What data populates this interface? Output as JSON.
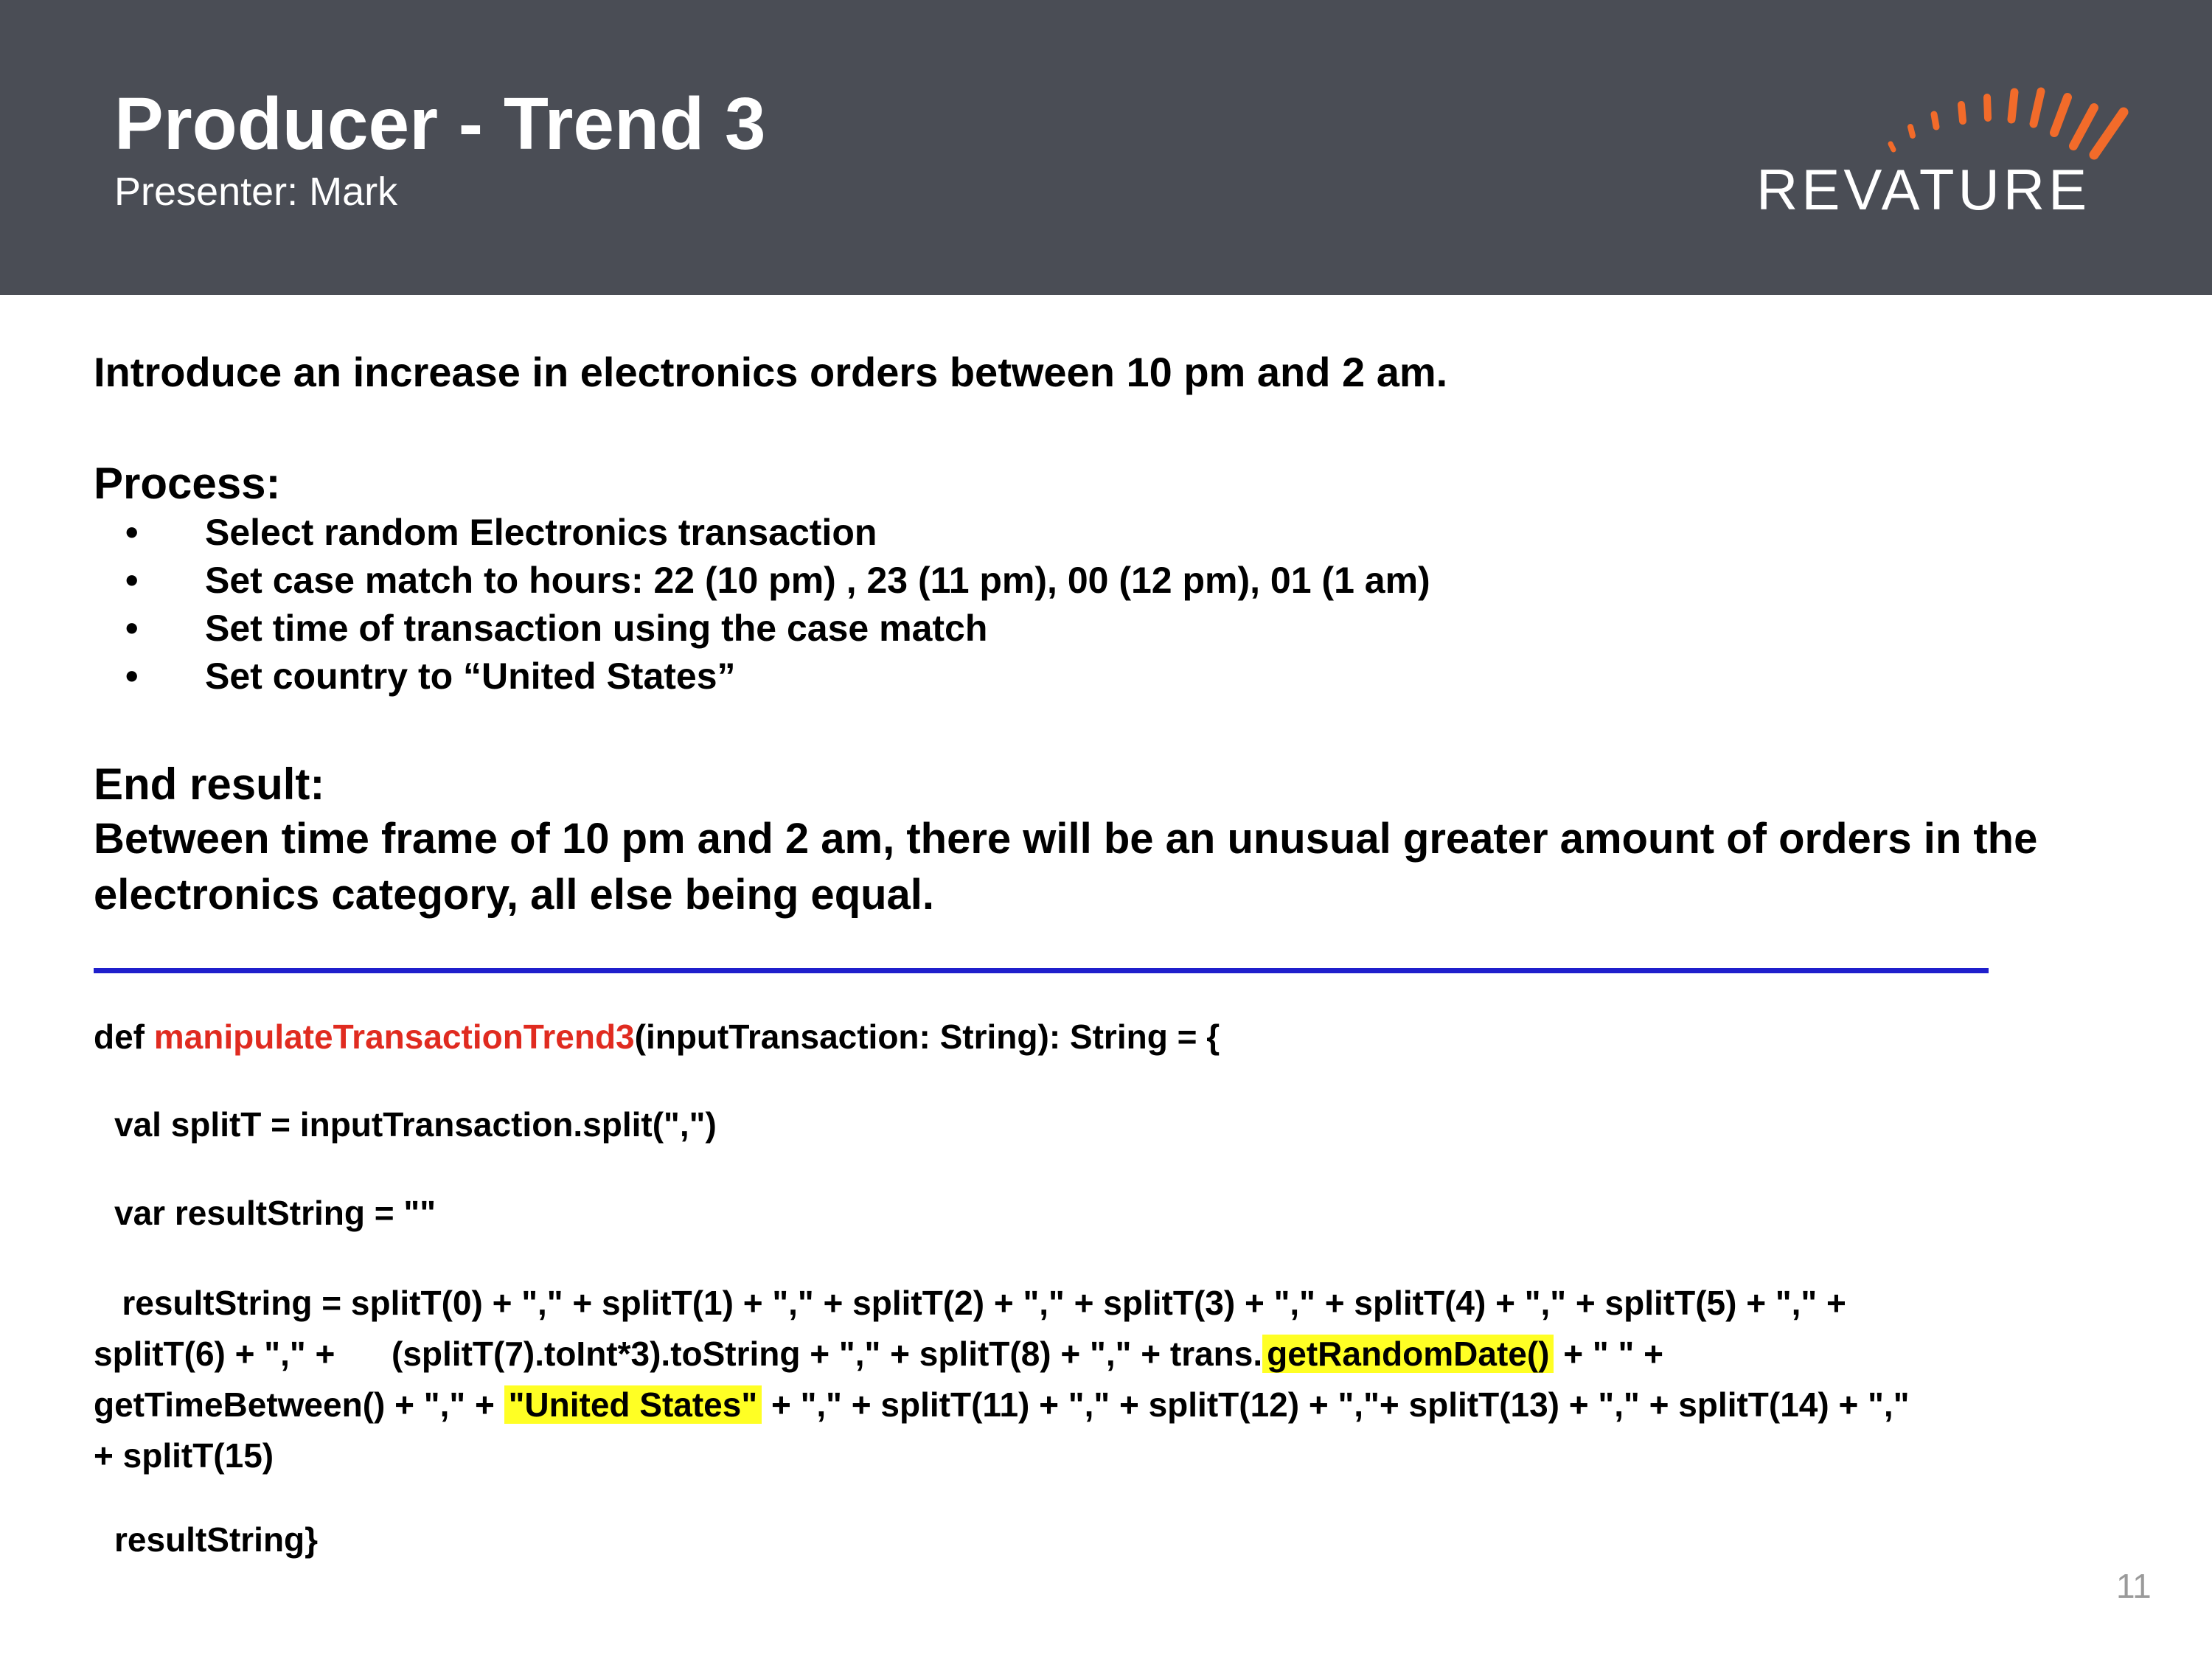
{
  "header": {
    "title": "Producer - Trend 3",
    "subtitle": "Presenter: Mark",
    "logo_text": "REVATURE",
    "bg_color": "#4a4d55",
    "accent_color": "#f26b2a"
  },
  "body": {
    "intro": "Introduce an increase in electronics orders between 10 pm and 2 am.",
    "process_heading": "Process:",
    "bullet_symbol": "•",
    "process_items": [
      "Select random Electronics transaction",
      "Set case match to hours:  22 (10 pm) , 23 (11 pm), 00 (12 pm), 01 (1 am)",
      "Set time of transaction using the case match",
      "Set country to “United States”"
    ],
    "end_heading": "End result:",
    "end_text": "Between time frame of 10 pm and 2 am, there will be an unusual greater amount of orders in the electronics category, all else being equal.",
    "divider_color": "#1f1fcc"
  },
  "code": {
    "line1_pre": "def ",
    "line1_fn": "manipulateTransactionTrend3",
    "line1_post": "(inputTransaction: String): String = {",
    "line2": "val splitT = inputTransaction.split(\",\")",
    "line3": "var resultString = \"\"",
    "line4a": "   resultString = splitT(0) + \",\" + splitT(1) + \",\" + splitT(2) + \",\" + splitT(3) + \",\" + splitT(4) + \",\" + splitT(5) + \",\" +",
    "line4b_pre": "splitT(6) + \",\" +      (splitT(7).toInt*3).toString + \",\" + splitT(8) + \",\" + trans.",
    "line4b_hl": "getRandomDate()",
    "line4b_post": " + \" \" +",
    "line4c_pre": "getTimeBetween() + \",\" + ",
    "line4c_hl": "\"United States\"",
    "line4c_post": " + \",\" + splitT(11) + \",\" + splitT(12) + \",\"+ splitT(13) + \",\" + splitT(14) + \",\"",
    "line4d": "+ splitT(15)",
    "line5": "resultString}",
    "highlight_color": "#ffff24",
    "function_color": "#e02b20"
  },
  "page_number": "11"
}
